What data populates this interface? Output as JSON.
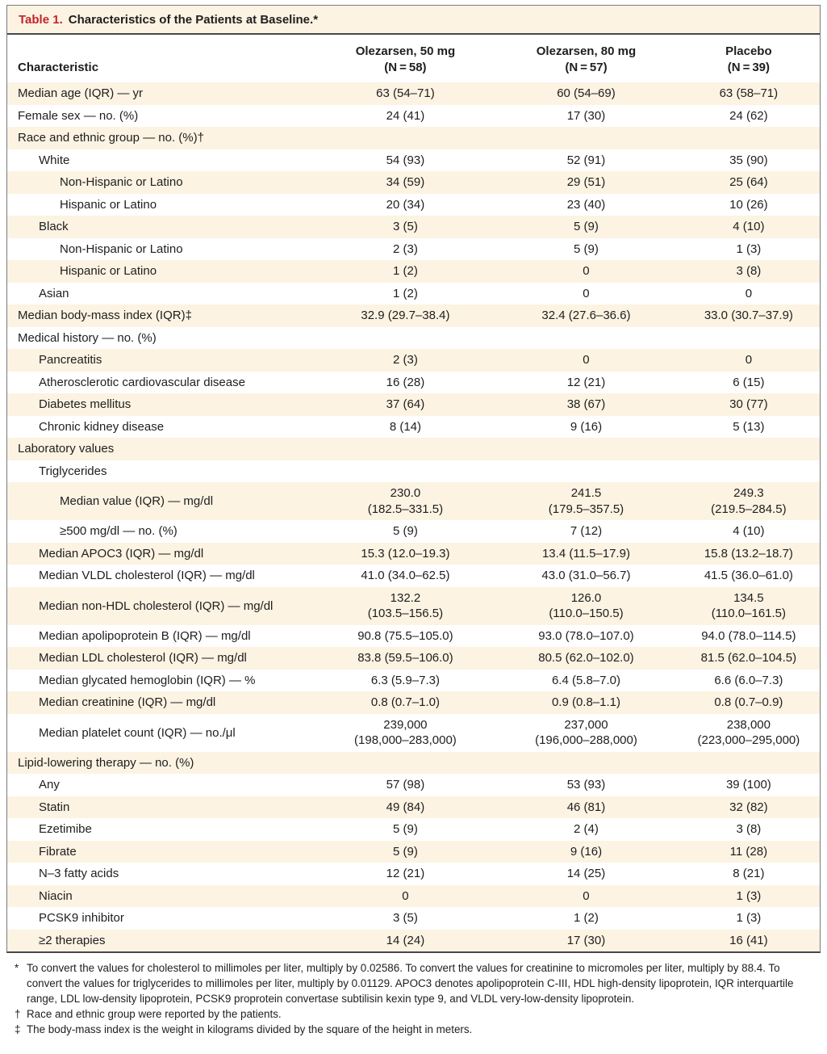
{
  "title": {
    "label": "Table 1.",
    "text": "Characteristics of the Patients at Baseline.*"
  },
  "colors": {
    "table_number_red": "#c2242b",
    "row_shading_cream": "#fcf3e2",
    "rule_gray": "#47474b"
  },
  "table": {
    "header": {
      "characteristic": "Characteristic",
      "columns": [
        "Olezarsen, 50 mg\n(N = 58)",
        "Olezarsen, 80 mg\n(N = 57)",
        "Placebo\n(N = 39)"
      ]
    },
    "rows": [
      {
        "label": "Median age (IQR) — yr",
        "indent": 0,
        "values": [
          "63 (54–71)",
          "60 (54–69)",
          "63 (58–71)"
        ]
      },
      {
        "label": "Female sex — no. (%)",
        "indent": 0,
        "values": [
          "24 (41)",
          "17 (30)",
          "24 (62)"
        ]
      },
      {
        "label": "Race and ethnic group — no. (%)†",
        "indent": 0,
        "values": [
          "",
          "",
          ""
        ]
      },
      {
        "label": "White",
        "indent": 1,
        "values": [
          "54 (93)",
          "52 (91)",
          "35 (90)"
        ]
      },
      {
        "label": "Non-Hispanic or Latino",
        "indent": 2,
        "values": [
          "34 (59)",
          "29 (51)",
          "25 (64)"
        ]
      },
      {
        "label": "Hispanic or Latino",
        "indent": 2,
        "values": [
          "20 (34)",
          "23 (40)",
          "10 (26)"
        ]
      },
      {
        "label": "Black",
        "indent": 1,
        "values": [
          "3 (5)",
          "5 (9)",
          "4 (10)"
        ]
      },
      {
        "label": "Non-Hispanic or Latino",
        "indent": 2,
        "values": [
          "2 (3)",
          "5 (9)",
          "1 (3)"
        ]
      },
      {
        "label": "Hispanic or Latino",
        "indent": 2,
        "values": [
          "1 (2)",
          "0",
          "3 (8)"
        ]
      },
      {
        "label": "Asian",
        "indent": 1,
        "values": [
          "1 (2)",
          "0",
          "0"
        ]
      },
      {
        "label": "Median body-mass index (IQR)‡",
        "indent": 0,
        "values": [
          "32.9 (29.7–38.4)",
          "32.4 (27.6–36.6)",
          "33.0 (30.7–37.9)"
        ]
      },
      {
        "label": "Medical history — no. (%)",
        "indent": 0,
        "values": [
          "",
          "",
          ""
        ]
      },
      {
        "label": "Pancreatitis",
        "indent": 1,
        "values": [
          "2 (3)",
          "0",
          "0"
        ]
      },
      {
        "label": "Atherosclerotic cardiovascular disease",
        "indent": 1,
        "values": [
          "16 (28)",
          "12 (21)",
          "6 (15)"
        ]
      },
      {
        "label": "Diabetes mellitus",
        "indent": 1,
        "values": [
          "37 (64)",
          "38 (67)",
          "30 (77)"
        ]
      },
      {
        "label": "Chronic kidney disease",
        "indent": 1,
        "values": [
          "8 (14)",
          "9 (16)",
          "5 (13)"
        ]
      },
      {
        "label": "Laboratory values",
        "indent": 0,
        "values": [
          "",
          "",
          ""
        ]
      },
      {
        "label": "Triglycerides",
        "indent": 1,
        "values": [
          "",
          "",
          ""
        ]
      },
      {
        "label": "Median value (IQR) — mg/dl",
        "indent": 2,
        "values": [
          "230.0\n(182.5–331.5)",
          "241.5\n(179.5–357.5)",
          "249.3\n(219.5–284.5)"
        ]
      },
      {
        "label": "≥500 mg/dl — no. (%)",
        "indent": 2,
        "values": [
          "5 (9)",
          "7 (12)",
          "4 (10)"
        ]
      },
      {
        "label": "Median APOC3 (IQR) — mg/dl",
        "indent": 1,
        "values": [
          "15.3 (12.0–19.3)",
          "13.4 (11.5–17.9)",
          "15.8 (13.2–18.7)"
        ]
      },
      {
        "label": "Median VLDL cholesterol (IQR) — mg/dl",
        "indent": 1,
        "values": [
          "41.0 (34.0–62.5)",
          "43.0 (31.0–56.7)",
          "41.5 (36.0–61.0)"
        ]
      },
      {
        "label": "Median non-HDL cholesterol (IQR) — mg/dl",
        "indent": 1,
        "values": [
          "132.2\n(103.5–156.5)",
          "126.0\n(110.0–150.5)",
          "134.5\n(110.0–161.5)"
        ]
      },
      {
        "label": "Median apolipoprotein B (IQR) — mg/dl",
        "indent": 1,
        "values": [
          "90.8 (75.5–105.0)",
          "93.0 (78.0–107.0)",
          "94.0 (78.0–114.5)"
        ]
      },
      {
        "label": "Median LDL cholesterol (IQR) — mg/dl",
        "indent": 1,
        "values": [
          "83.8 (59.5–106.0)",
          "80.5 (62.0–102.0)",
          "81.5 (62.0–104.5)"
        ]
      },
      {
        "label": "Median glycated hemoglobin (IQR) — %",
        "indent": 1,
        "values": [
          "6.3 (5.9–7.3)",
          "6.4 (5.8–7.0)",
          "6.6 (6.0–7.3)"
        ]
      },
      {
        "label": "Median creatinine (IQR) — mg/dl",
        "indent": 1,
        "values": [
          "0.8 (0.7–1.0)",
          "0.9 (0.8–1.1)",
          "0.8 (0.7–0.9)"
        ]
      },
      {
        "label": "Median platelet count (IQR) — no./μl",
        "indent": 1,
        "values": [
          "239,000\n(198,000–283,000)",
          "237,000\n(196,000–288,000)",
          "238,000\n(223,000–295,000)"
        ]
      },
      {
        "label": "Lipid-lowering therapy — no. (%)",
        "indent": 0,
        "values": [
          "",
          "",
          ""
        ]
      },
      {
        "label": "Any",
        "indent": 1,
        "values": [
          "57 (98)",
          "53 (93)",
          "39 (100)"
        ]
      },
      {
        "label": "Statin",
        "indent": 1,
        "values": [
          "49 (84)",
          "46 (81)",
          "32 (82)"
        ]
      },
      {
        "label": "Ezetimibe",
        "indent": 1,
        "values": [
          "5 (9)",
          "2 (4)",
          "3 (8)"
        ]
      },
      {
        "label": "Fibrate",
        "indent": 1,
        "values": [
          "5 (9)",
          "9 (16)",
          "11 (28)"
        ]
      },
      {
        "label": "N–3 fatty acids",
        "indent": 1,
        "values": [
          "12 (21)",
          "14 (25)",
          "8 (21)"
        ]
      },
      {
        "label": "Niacin",
        "indent": 1,
        "values": [
          "0",
          "0",
          "1 (3)"
        ]
      },
      {
        "label": "PCSK9 inhibitor",
        "indent": 1,
        "values": [
          "3 (5)",
          "1 (2)",
          "1 (3)"
        ]
      },
      {
        "label": "≥2 therapies",
        "indent": 1,
        "values": [
          "14 (24)",
          "17 (30)",
          "16 (41)"
        ]
      }
    ]
  },
  "footnotes": [
    {
      "marker": "*",
      "text": "To convert the values for cholesterol to millimoles per liter, multiply by 0.02586. To convert the values for creatinine to micromoles per liter, multiply by 88.4. To convert the values for triglycerides to millimoles per liter, multiply by 0.01129. APOC3 denotes apolipoprotein C-III, HDL high-density lipoprotein, IQR interquartile range, LDL low-density lipoprotein, PCSK9 proprotein convertase subtilisin kexin type 9, and VLDL very-low-density lipoprotein."
    },
    {
      "marker": "†",
      "text": "Race and ethnic group were reported by the patients."
    },
    {
      "marker": "‡",
      "text": "The body-mass index is the weight in kilograms divided by the square of the height in meters."
    }
  ]
}
